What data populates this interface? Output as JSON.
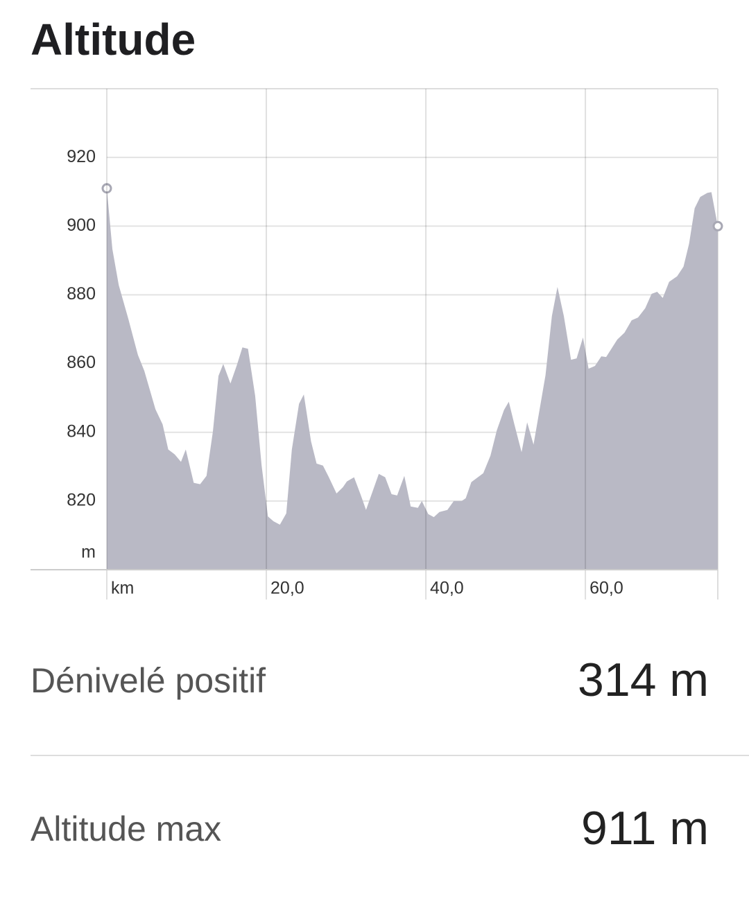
{
  "title": "Altitude",
  "chart_data": {
    "type": "area",
    "color": "#b9b9c5",
    "x": [
      0.0,
      0.7,
      1.5,
      2.7,
      3.9,
      4.7,
      6.1,
      7.0,
      7.7,
      8.5,
      9.3,
      9.9,
      10.9,
      11.7,
      12.5,
      13.3,
      14.0,
      14.6,
      15.5,
      16.3,
      17.0,
      17.7,
      18.6,
      19.4,
      20.2,
      20.9,
      21.7,
      22.5,
      23.2,
      24.1,
      24.7,
      25.6,
      26.3,
      27.1,
      27.8,
      28.8,
      29.6,
      30.1,
      31.0,
      31.8,
      32.5,
      33.2,
      34.1,
      34.9,
      35.7,
      36.4,
      37.3,
      38.1,
      39.0,
      39.5,
      40.3,
      41.0,
      41.7,
      42.7,
      43.5,
      44.5,
      45.0,
      45.7,
      47.2,
      48.1,
      48.9,
      49.8,
      50.4,
      51.1,
      52.0,
      52.7,
      53.5,
      55.0,
      55.8,
      56.5,
      57.3,
      58.2,
      58.9,
      59.7,
      60.4,
      61.2,
      62.0,
      62.6,
      64.0,
      64.9,
      65.8,
      66.6,
      67.5,
      68.3,
      69.0,
      69.7,
      70.5,
      71.5,
      72.3,
      73.0,
      73.7,
      74.4,
      75.3,
      75.8,
      76.6
    ],
    "values": [
      911,
      893.3,
      882.8,
      873.0,
      862.5,
      857.9,
      846.7,
      842.3,
      835.0,
      833.6,
      831.4,
      835.0,
      825.3,
      824.9,
      827.3,
      840.2,
      856.4,
      859.9,
      854.2,
      859.5,
      864.7,
      864.3,
      850.6,
      830.5,
      815.5,
      814.1,
      813.1,
      816.4,
      835.0,
      848.3,
      851.0,
      837.4,
      830.9,
      830.3,
      827.1,
      822.2,
      824.0,
      825.7,
      826.9,
      822.0,
      817.4,
      822.0,
      827.9,
      826.9,
      822.0,
      821.6,
      827.3,
      818.4,
      818.0,
      820.0,
      816.2,
      815.3,
      816.8,
      817.4,
      820.0,
      820.0,
      820.8,
      825.5,
      828.1,
      833.2,
      840.6,
      846.5,
      848.9,
      842.3,
      834.2,
      842.9,
      836.4,
      856.6,
      873.8,
      882.3,
      873.8,
      861.1,
      861.5,
      867.6,
      858.5,
      859.3,
      862.1,
      861.9,
      867.0,
      869.0,
      872.6,
      873.4,
      876.1,
      880.3,
      880.9,
      879.1,
      883.8,
      885.4,
      888.2,
      894.9,
      905.2,
      908.5,
      909.7,
      909.9,
      900
    ],
    "xlim": [
      0,
      76.6
    ],
    "ylim": [
      800,
      940
    ],
    "xticks": [
      {
        "value": 0,
        "label": "km"
      },
      {
        "value": 20,
        "label": "20,0"
      },
      {
        "value": 40,
        "label": "40,0"
      },
      {
        "value": 60,
        "label": "60,0"
      }
    ],
    "yticks": [
      {
        "value": 800,
        "label": "m"
      },
      820,
      840,
      860,
      880,
      900,
      920
    ],
    "grid": true
  },
  "stats": [
    {
      "label": "Dénivelé positif",
      "value": "314 m"
    },
    {
      "label": "Altitude max",
      "value": "911 m"
    }
  ]
}
